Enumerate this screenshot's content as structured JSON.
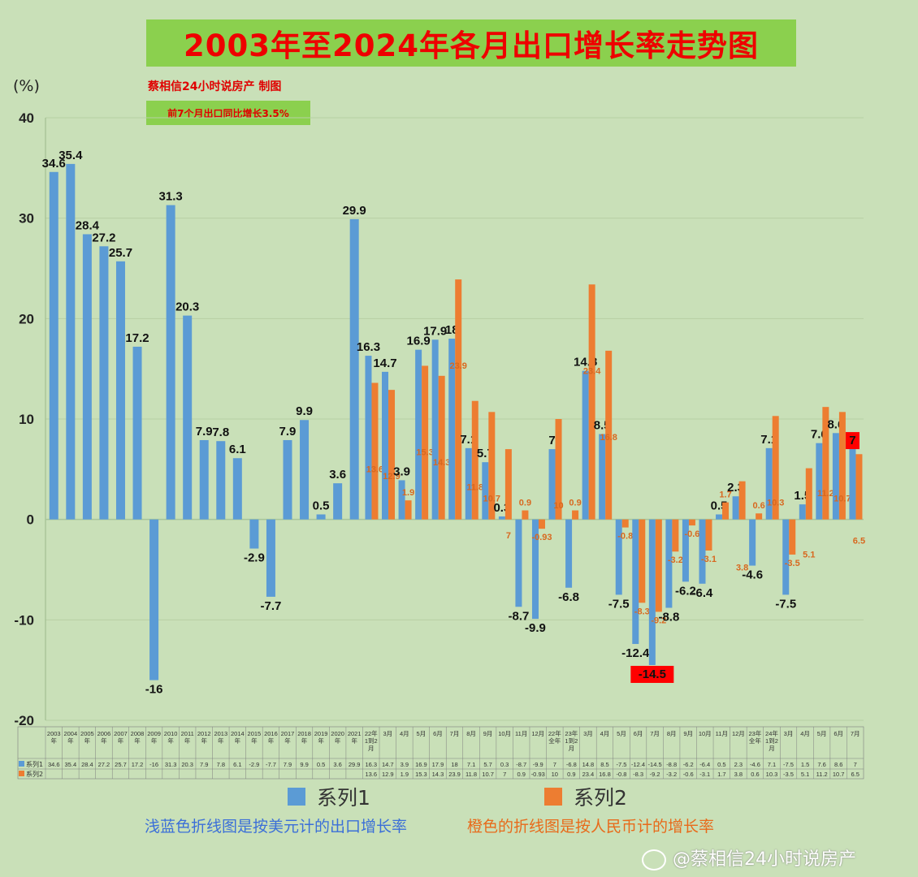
{
  "title": "2003年至2024年各月出口增长率走势图",
  "unit": "(%)",
  "credit": "蔡相信24小时说房产 制图",
  "note": "前7个月出口同比增长3.5%",
  "legend": {
    "s1": "系列1",
    "s2": "系列2"
  },
  "captions": {
    "blue": "浅蓝色折线图是按美元计的出口增长率",
    "orange": "橙色的折线图是按人民币计的增长率"
  },
  "watermark": "@蔡相信24小时说房产",
  "colors": {
    "s1": "#5b9bd5",
    "s2": "#ed7d31",
    "highlight": "#ff0000",
    "background": "#c9e0b8"
  },
  "icons": {
    "watermark": "weibo-icon"
  },
  "chart_data": {
    "type": "bar",
    "title": "2003年至2024年各月出口增长率走势图",
    "ylabel": "(%)",
    "ylim": [
      -20,
      40
    ],
    "yticks": [
      -20,
      -10,
      0,
      10,
      20,
      30,
      40
    ],
    "grid": true,
    "legend_position": "bottom",
    "categories": [
      "2003年",
      "2004年",
      "2005年",
      "2006年",
      "2007年",
      "2008年",
      "2009年",
      "2010年",
      "2011年",
      "2012年",
      "2013年",
      "2014年",
      "2015年",
      "2016年",
      "2017年",
      "2018年",
      "2019年",
      "2020年",
      "2021年",
      "22年1到2月",
      "3月",
      "4月",
      "5月",
      "6月",
      "7月",
      "8月",
      "9月",
      "10月",
      "11月",
      "12月",
      "22年全年",
      "23年1到2月",
      "3月",
      "4月",
      "5月",
      "6月",
      "7月",
      "8月",
      "9月",
      "10月",
      "11月",
      "12月",
      "23年全年",
      "24年1到2月",
      "3月",
      "4月",
      "5月",
      "6月",
      "7月"
    ],
    "series": [
      {
        "name": "系列1",
        "values": [
          34.6,
          35.4,
          28.4,
          27.2,
          25.7,
          17.2,
          -16,
          31.3,
          20.3,
          7.9,
          7.8,
          6.1,
          -2.9,
          -7.7,
          7.9,
          9.9,
          0.5,
          3.6,
          29.9,
          16.3,
          14.7,
          3.9,
          16.9,
          17.9,
          18,
          7.1,
          5.7,
          0.3,
          -8.7,
          -9.9,
          7,
          -6.8,
          14.8,
          8.5,
          -7.5,
          -12.4,
          -14.5,
          -8.8,
          -6.2,
          -6.4,
          0.5,
          2.3,
          -4.6,
          7.1,
          -7.5,
          1.5,
          7.6,
          8.6,
          7
        ]
      },
      {
        "name": "系列2",
        "values": [
          null,
          null,
          null,
          null,
          null,
          null,
          null,
          null,
          null,
          null,
          null,
          null,
          null,
          null,
          null,
          null,
          null,
          null,
          null,
          13.6,
          12.9,
          1.9,
          15.3,
          14.3,
          23.9,
          11.8,
          10.7,
          7,
          0.9,
          -0.93,
          10,
          0.9,
          23.4,
          16.8,
          -0.8,
          -8.3,
          -9.2,
          -3.2,
          -0.6,
          -3.1,
          1.7,
          3.8,
          0.6,
          10.3,
          -3.5,
          5.1,
          11.2,
          10.7,
          6.5
        ]
      }
    ],
    "highlighted": [
      {
        "series": 0,
        "index": 36
      },
      {
        "series": 0,
        "index": 48
      }
    ]
  }
}
